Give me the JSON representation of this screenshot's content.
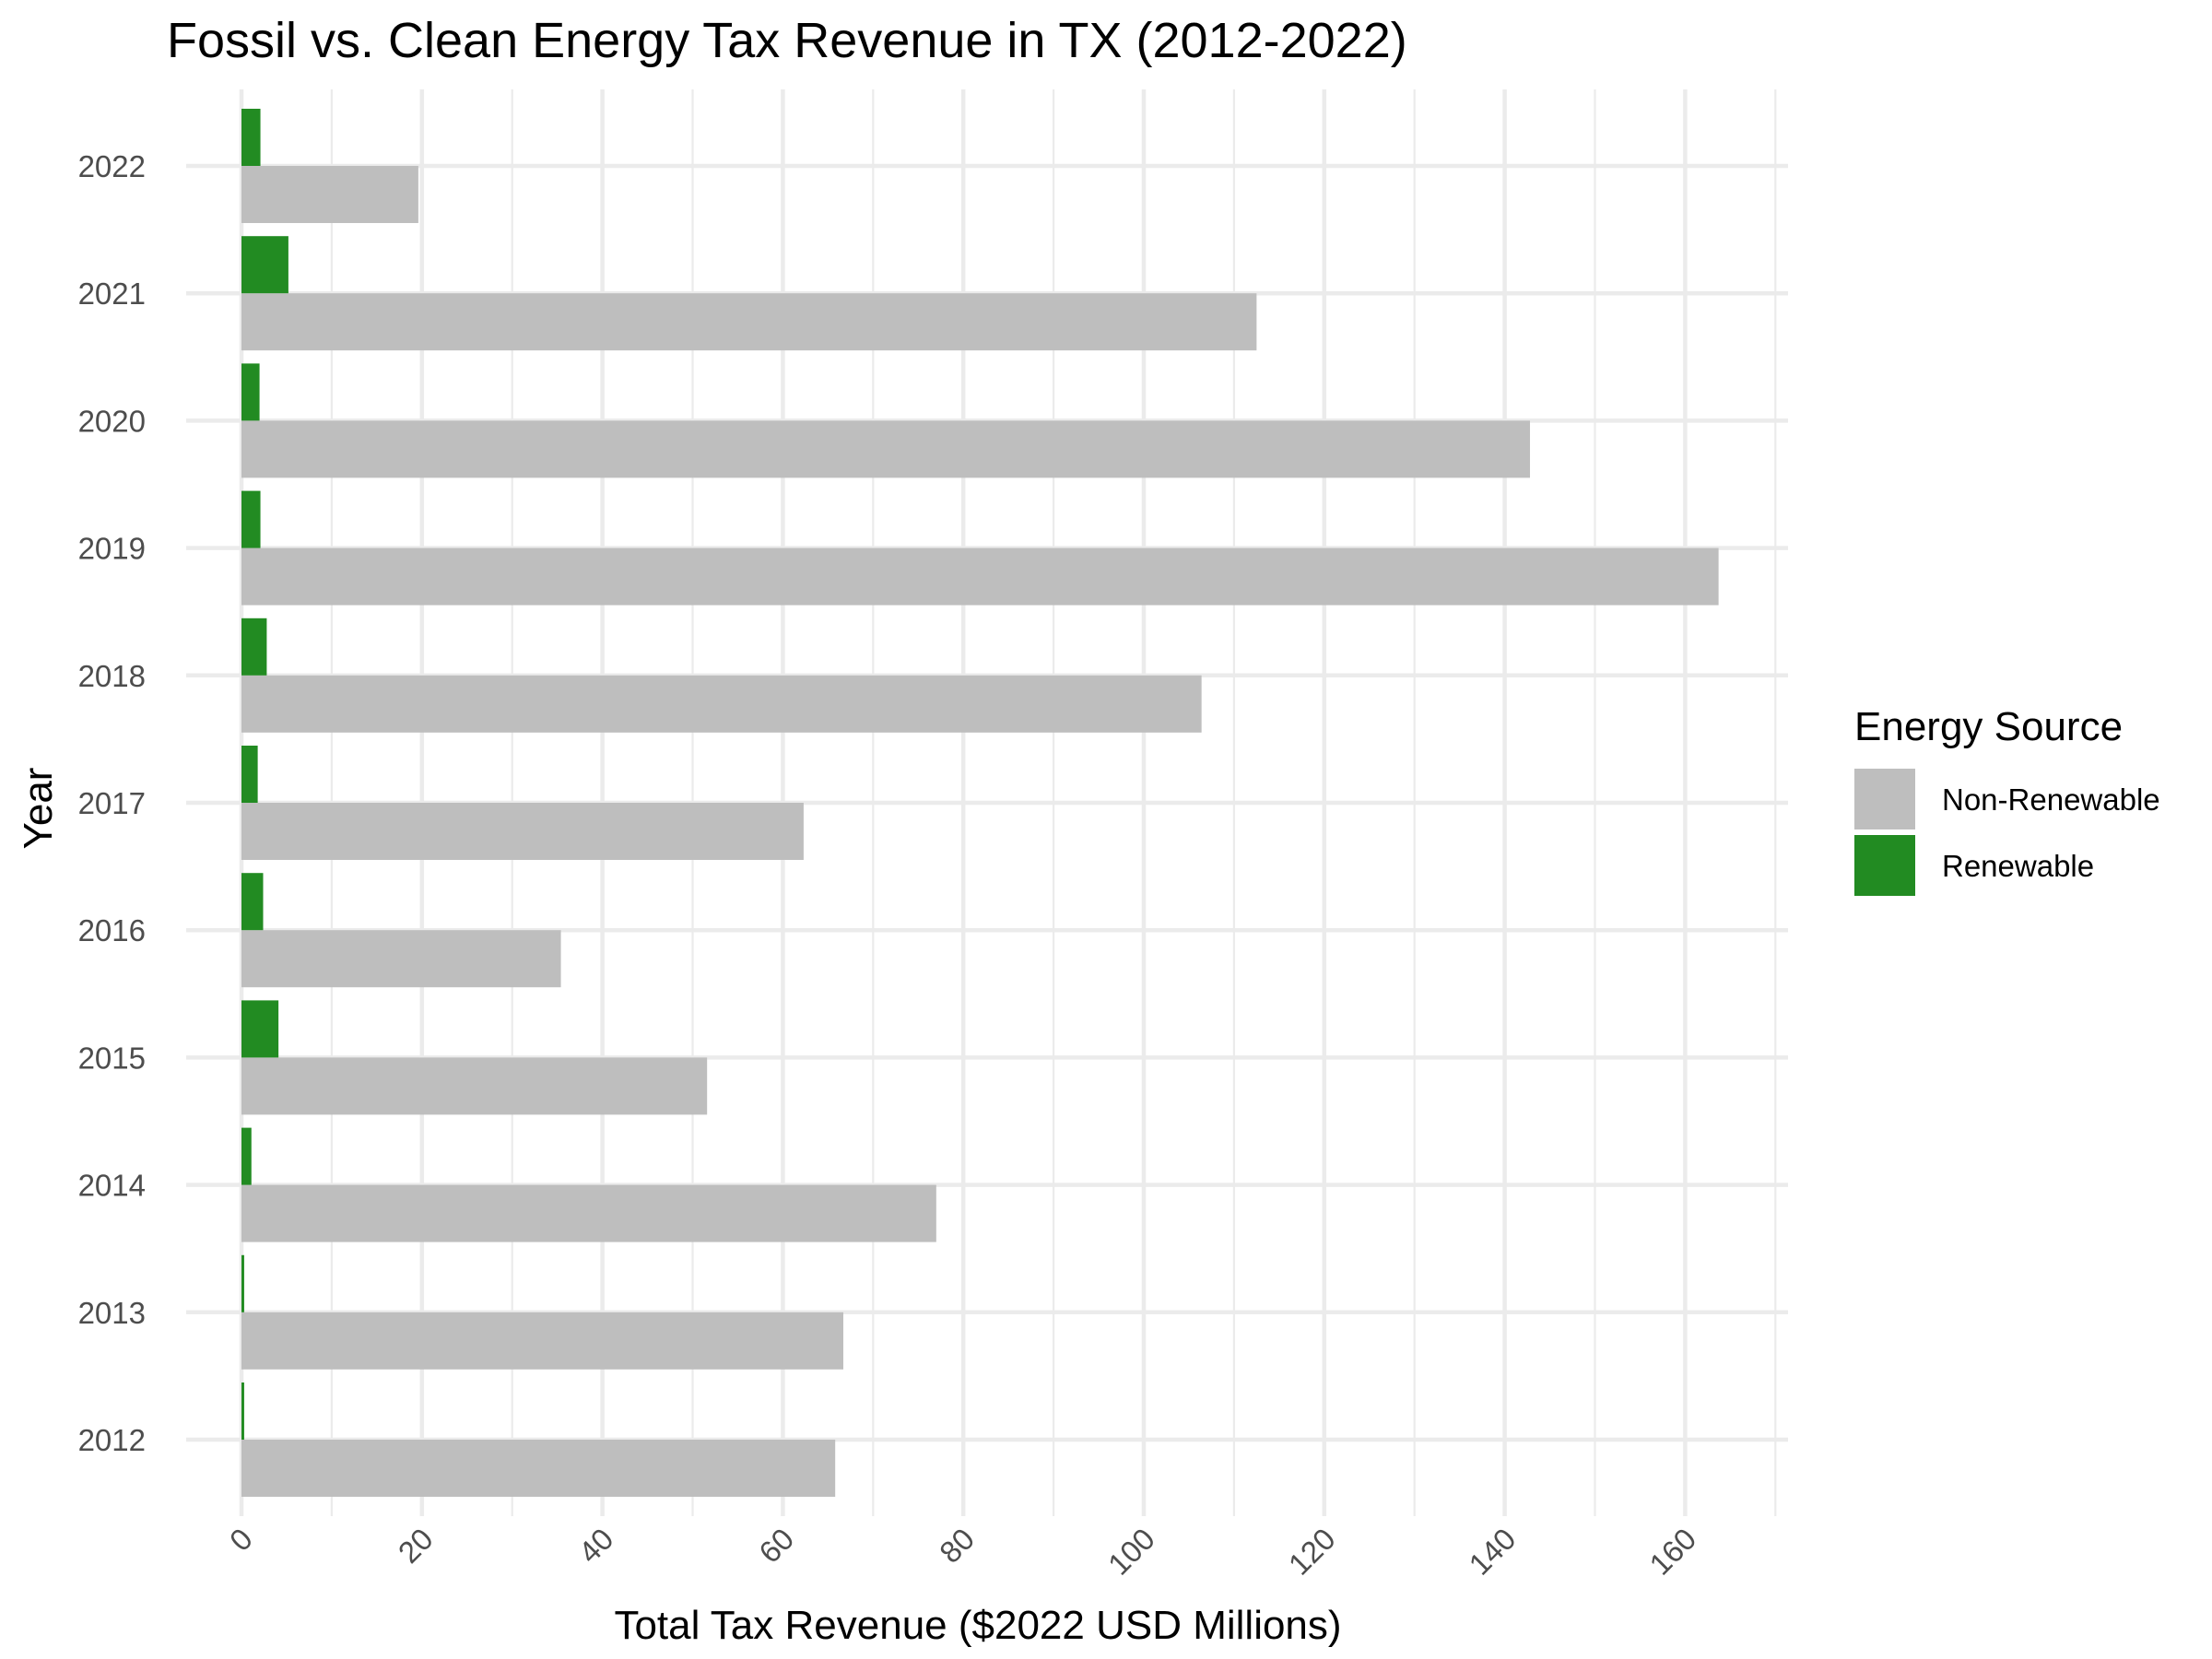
{
  "chart_data": {
    "type": "bar",
    "orientation": "horizontal",
    "title": "Fossil vs. Clean Energy Tax Revenue in TX (2012-2022)",
    "xlabel": "Total Tax Revenue ($2022 USD Millions)",
    "ylabel": "Year",
    "xlim": [
      0,
      170
    ],
    "x_ticks": [
      0,
      20,
      40,
      60,
      80,
      100,
      120,
      140,
      160
    ],
    "x_tick_labels": [
      "0",
      "20",
      "40",
      "60",
      "80",
      "100",
      "120",
      "140",
      "160"
    ],
    "grid": true,
    "legend_title": "Energy Source",
    "legend_position": "right",
    "categories": [
      "2012",
      "2013",
      "2014",
      "2015",
      "2016",
      "2017",
      "2018",
      "2019",
      "2020",
      "2021",
      "2022"
    ],
    "series": [
      {
        "name": "Non-Renewable",
        "color": "#bebebe",
        "values": [
          65.8,
          66.7,
          77.0,
          51.6,
          35.4,
          62.3,
          106.4,
          163.7,
          142.8,
          112.5,
          19.6
        ]
      },
      {
        "name": "Renewable",
        "color": "#228b22",
        "values": [
          0.3,
          0.3,
          1.1,
          4.1,
          2.4,
          1.8,
          2.8,
          2.1,
          2.0,
          5.2,
          2.1
        ]
      }
    ]
  }
}
